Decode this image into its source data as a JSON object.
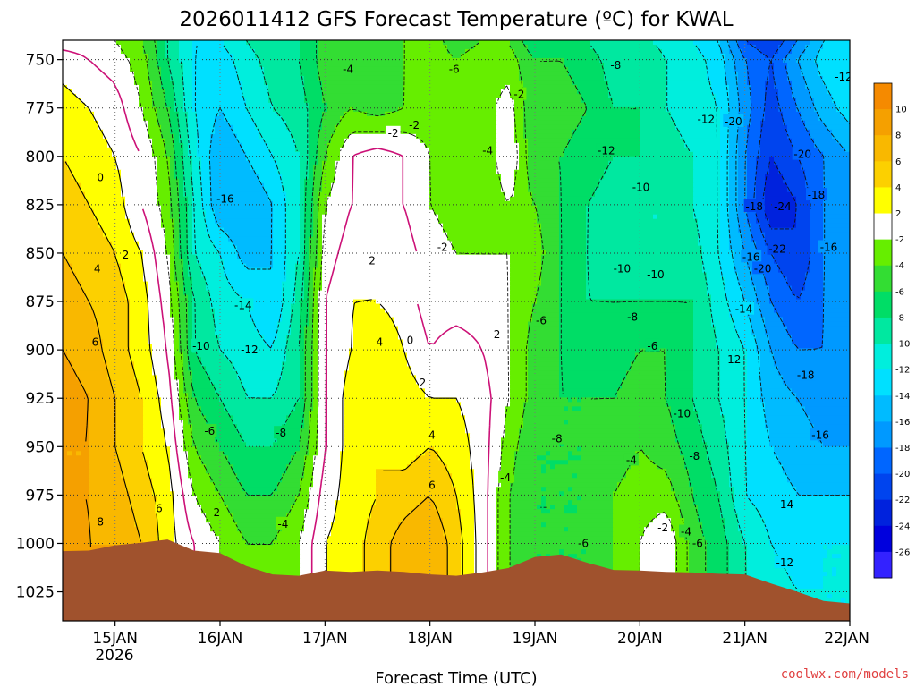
{
  "chart_data": {
    "type": "heatmap",
    "title": "2026011412 GFS Forecast Temperature (ºC) for KWAL",
    "xlabel": "Forecast Time (UTC)",
    "ylabel": "",
    "x_tick_labels": [
      "15JAN",
      "16JAN",
      "17JAN",
      "18JAN",
      "19JAN",
      "20JAN",
      "21JAN",
      "22JAN"
    ],
    "x_tick_sublabel": "2026",
    "x_range": [
      14.5,
      22.0
    ],
    "y_tick_labels": [
      "750",
      "775",
      "800",
      "825",
      "850",
      "875",
      "900",
      "925",
      "950",
      "975",
      "1000",
      "1025"
    ],
    "y_range": [
      740,
      1040
    ],
    "colorbar": {
      "labels": [
        "10",
        "8",
        "6",
        "4",
        "2",
        "-2",
        "-4",
        "-6",
        "-8",
        "-10",
        "-12",
        "-14",
        "-16",
        "-18",
        "-20",
        "-22",
        "-24",
        "-26"
      ],
      "bins": [
        {
          "lo": 10,
          "hi": 12,
          "color": "#f58a00"
        },
        {
          "lo": 8,
          "hi": 10,
          "color": "#f5a000"
        },
        {
          "lo": 6,
          "hi": 8,
          "color": "#f9b800"
        },
        {
          "lo": 4,
          "hi": 6,
          "color": "#fcd000"
        },
        {
          "lo": 2,
          "hi": 4,
          "color": "#ffff00"
        },
        {
          "lo": -2,
          "hi": 2,
          "color": "#ffffff"
        },
        {
          "lo": -4,
          "hi": -2,
          "color": "#66ee00"
        },
        {
          "lo": -6,
          "hi": -4,
          "color": "#33dd33"
        },
        {
          "lo": -8,
          "hi": -6,
          "color": "#00dd66"
        },
        {
          "lo": -10,
          "hi": -8,
          "color": "#00e8a0"
        },
        {
          "lo": -12,
          "hi": -10,
          "color": "#00eedd"
        },
        {
          "lo": -14,
          "hi": -12,
          "color": "#00e0ff"
        },
        {
          "lo": -16,
          "hi": -14,
          "color": "#00bbff"
        },
        {
          "lo": -18,
          "hi": -16,
          "color": "#0099ff"
        },
        {
          "lo": -20,
          "hi": -18,
          "color": "#0066ff"
        },
        {
          "lo": -22,
          "hi": -20,
          "color": "#0044ee"
        },
        {
          "lo": -24,
          "hi": -22,
          "color": "#0022dd"
        },
        {
          "lo": -26,
          "hi": -24,
          "color": "#0000dd"
        },
        {
          "lo": -28,
          "hi": -26,
          "color": "#3322ff"
        }
      ]
    },
    "temperature_grid": {
      "times": [
        14.5,
        14.75,
        15.0,
        15.25,
        15.5,
        15.75,
        16.0,
        16.25,
        16.5,
        16.75,
        17.0,
        17.25,
        17.5,
        17.75,
        18.0,
        18.25,
        18.5,
        18.75,
        19.0,
        19.25,
        19.5,
        19.75,
        20.0,
        20.25,
        20.5,
        20.75,
        21.0,
        21.25,
        21.5,
        21.75,
        22.0
      ],
      "levels": [
        740,
        750,
        775,
        800,
        825,
        850,
        875,
        900,
        925,
        950,
        975,
        1000,
        1025,
        1040
      ],
      "values": [
        [
          -1,
          -1,
          -2,
          -4,
          -8,
          -12,
          -12,
          -10,
          -8,
          -8,
          -5,
          -4,
          -6,
          -4,
          -3,
          -5,
          -4,
          -4,
          -8,
          -8,
          -8,
          -10,
          -9,
          -11,
          -12,
          -14,
          -20,
          -22,
          -18,
          -14,
          -12
        ],
        [
          1,
          0,
          -1,
          -3,
          -8,
          -12,
          -13,
          -11,
          -9,
          -8,
          -5,
          -4,
          -6,
          -4,
          -3,
          -4,
          -3,
          -3,
          -6,
          -6,
          -7,
          -9,
          -8,
          -10,
          -11,
          -13,
          -18,
          -20,
          -16,
          -13,
          -12
        ],
        [
          3,
          2,
          1,
          -2,
          -6,
          -12,
          -14,
          -12,
          -10,
          -9,
          -6,
          -4,
          -5,
          -4,
          -3,
          -4,
          -3,
          -1,
          -6,
          -5,
          -6,
          -8,
          -8,
          -10,
          -11,
          -12,
          -17,
          -21,
          -18,
          -15,
          -13
        ],
        [
          4,
          3,
          2,
          0,
          -4,
          -11,
          -16,
          -14,
          -12,
          -10,
          -4,
          0,
          1,
          0,
          -2,
          -4,
          -4,
          0,
          -6,
          -6,
          -7,
          -8,
          -8,
          -9,
          -10,
          -12,
          -18,
          -22,
          -20,
          -18,
          -16
        ],
        [
          5,
          4,
          3,
          0,
          -3,
          -10,
          -16,
          -16,
          -14,
          -10,
          -2,
          0,
          1,
          0,
          -2,
          -3,
          -4,
          -2,
          -4,
          -6,
          -8,
          -9,
          -10,
          -10,
          -10,
          -12,
          -18,
          -24,
          -22,
          -18,
          -16
        ],
        [
          6,
          5,
          4,
          2,
          -2,
          -10,
          -12,
          -15,
          -14,
          -10,
          -1,
          1,
          2,
          1,
          -1,
          -2,
          -2,
          -2,
          -3,
          -6,
          -8,
          -10,
          -10,
          -10,
          -9,
          -12,
          -16,
          -20,
          -22,
          -18,
          -16
        ],
        [
          7,
          6,
          5,
          3,
          -1,
          -8,
          -11,
          -12,
          -14,
          -9,
          0,
          2,
          2,
          1,
          -1,
          -1,
          -1,
          -2,
          -4,
          -6,
          -8,
          -8,
          -8,
          -8,
          -8,
          -11,
          -14,
          -18,
          -20,
          -18,
          -16
        ],
        [
          8,
          7,
          5,
          3,
          0,
          -8,
          -10,
          -11,
          -12,
          -8,
          0,
          2,
          4,
          2,
          0,
          1,
          0,
          -2,
          -5,
          -6,
          -7,
          -7,
          -6,
          -6,
          -8,
          -10,
          -12,
          -16,
          -18,
          -18,
          -17
        ],
        [
          9,
          8,
          6,
          4,
          1,
          -6,
          -8,
          -10,
          -10,
          -8,
          0,
          3,
          4,
          3,
          2,
          2,
          1,
          -2,
          -5,
          -6,
          -6,
          -6,
          -5,
          -6,
          -8,
          -10,
          -12,
          -15,
          -16,
          -17,
          -17
        ],
        [
          8,
          8,
          6,
          4,
          2,
          -4,
          -6,
          -8,
          -8,
          -6,
          0,
          3,
          4,
          3,
          4,
          3,
          1,
          -3,
          -6,
          -6,
          -6,
          -5,
          -4,
          -5,
          -7,
          -9,
          -12,
          -14,
          -15,
          -16,
          -16
        ],
        [
          8,
          8,
          7,
          5,
          3,
          -2,
          -4,
          -6,
          -6,
          -4,
          1,
          3,
          4,
          5,
          6,
          4,
          1,
          -4,
          -6,
          -6,
          -6,
          -4,
          -3,
          -3,
          -6,
          -8,
          -12,
          -13,
          -14,
          -14,
          -14
        ],
        [
          9,
          8,
          8,
          6,
          3,
          0,
          -2,
          -4,
          -4,
          -2,
          2,
          3,
          5,
          7,
          8,
          5,
          1,
          -4,
          -6,
          -6,
          -6,
          -4,
          -2,
          0,
          -5,
          -7,
          -10,
          -12,
          -13,
          -12,
          -12
        ],
        [
          9,
          8,
          8,
          6,
          3,
          0,
          -2,
          -3,
          -3,
          -2,
          2,
          3,
          5,
          7,
          8,
          5,
          1,
          -4,
          -6,
          -6,
          -6,
          -4,
          -2,
          0,
          -5,
          -7,
          -10,
          -11,
          -12,
          -12,
          -12
        ],
        [
          9,
          8,
          8,
          6,
          3,
          0,
          -2,
          -3,
          -3,
          -2,
          2,
          3,
          5,
          7,
          8,
          5,
          1,
          -4,
          -6,
          -6,
          -6,
          -4,
          -2,
          0,
          -5,
          -7,
          -10,
          -11,
          -12,
          -12,
          -12
        ]
      ]
    },
    "surface_pressure": {
      "times": [
        14.5,
        14.75,
        15.0,
        15.25,
        15.5,
        15.75,
        16.0,
        16.25,
        16.5,
        16.75,
        17.0,
        17.25,
        17.5,
        17.75,
        18.0,
        18.25,
        18.5,
        18.75,
        19.0,
        19.25,
        19.5,
        19.75,
        20.0,
        20.25,
        20.5,
        20.75,
        21.0,
        21.25,
        21.5,
        21.75,
        22.0
      ],
      "values": [
        1004,
        1003,
        1001,
        999,
        998,
        1003,
        1005,
        1011,
        1016,
        1016,
        1014,
        1014,
        1014,
        1014,
        1016,
        1016,
        1015,
        1012,
        1007,
        1005,
        1010,
        1013,
        1014,
        1014,
        1015,
        1015,
        1016,
        1020,
        1025,
        1029,
        1031
      ]
    },
    "contour_labels": [
      {
        "t": 14.86,
        "p": 811,
        "text": "0"
      },
      {
        "t": 15.1,
        "p": 851,
        "text": "2"
      },
      {
        "t": 14.83,
        "p": 858,
        "text": "4"
      },
      {
        "t": 14.81,
        "p": 896,
        "text": "6"
      },
      {
        "t": 14.86,
        "p": 989,
        "text": "8"
      },
      {
        "t": 15.42,
        "p": 982,
        "text": "6"
      },
      {
        "t": 16.05,
        "p": 822,
        "text": "-16"
      },
      {
        "t": 16.22,
        "p": 877,
        "text": "-14"
      },
      {
        "t": 15.82,
        "p": 898,
        "text": "-10"
      },
      {
        "t": 16.28,
        "p": 900,
        "text": "-12"
      },
      {
        "t": 15.9,
        "p": 942,
        "text": "-6"
      },
      {
        "t": 16.58,
        "p": 943,
        "text": "-8"
      },
      {
        "t": 15.95,
        "p": 984,
        "text": "-2"
      },
      {
        "t": 16.6,
        "p": 990,
        "text": "-4"
      },
      {
        "t": 17.22,
        "p": 755,
        "text": "-4"
      },
      {
        "t": 17.65,
        "p": 788,
        "text": "-2"
      },
      {
        "t": 17.85,
        "p": 784,
        "text": "-2"
      },
      {
        "t": 18.23,
        "p": 755,
        "text": "-6"
      },
      {
        "t": 18.55,
        "p": 797,
        "text": "-4"
      },
      {
        "t": 18.12,
        "p": 847,
        "text": "-2"
      },
      {
        "t": 17.45,
        "p": 854,
        "text": "2"
      },
      {
        "t": 17.52,
        "p": 896,
        "text": "4"
      },
      {
        "t": 17.81,
        "p": 895,
        "text": "0"
      },
      {
        "t": 17.93,
        "p": 917,
        "text": "2"
      },
      {
        "t": 18.02,
        "p": 944,
        "text": "4"
      },
      {
        "t": 18.02,
        "p": 970,
        "text": "6"
      },
      {
        "t": 18.85,
        "p": 768,
        "text": "-2"
      },
      {
        "t": 18.62,
        "p": 892,
        "text": "-2"
      },
      {
        "t": 19.06,
        "p": 885,
        "text": "-6"
      },
      {
        "t": 19.21,
        "p": 946,
        "text": "-8"
      },
      {
        "t": 18.72,
        "p": 966,
        "text": "-4"
      },
      {
        "t": 19.77,
        "p": 753,
        "text": "-8"
      },
      {
        "t": 20.01,
        "p": 816,
        "text": "-10"
      },
      {
        "t": 19.68,
        "p": 797,
        "text": "-12"
      },
      {
        "t": 19.83,
        "p": 858,
        "text": "-10"
      },
      {
        "t": 20.15,
        "p": 861,
        "text": "-10"
      },
      {
        "t": 19.93,
        "p": 883,
        "text": "-8"
      },
      {
        "t": 20.12,
        "p": 898,
        "text": "-6"
      },
      {
        "t": 20.4,
        "p": 933,
        "text": "-10"
      },
      {
        "t": 19.92,
        "p": 957,
        "text": "-4"
      },
      {
        "t": 20.52,
        "p": 955,
        "text": "-8"
      },
      {
        "t": 20.22,
        "p": 992,
        "text": "-2"
      },
      {
        "t": 20.44,
        "p": 994,
        "text": "-4"
      },
      {
        "t": 19.46,
        "p": 1000,
        "text": "-6"
      },
      {
        "t": 20.55,
        "p": 1000,
        "text": "-6"
      },
      {
        "t": 20.63,
        "p": 781,
        "text": "-12"
      },
      {
        "t": 20.89,
        "p": 782,
        "text": "-20"
      },
      {
        "t": 21.09,
        "p": 826,
        "text": "-18"
      },
      {
        "t": 21.36,
        "p": 826,
        "text": "-24"
      },
      {
        "t": 21.55,
        "p": 799,
        "text": "-20"
      },
      {
        "t": 21.68,
        "p": 820,
        "text": "-18"
      },
      {
        "t": 21.31,
        "p": 848,
        "text": "-22"
      },
      {
        "t": 21.8,
        "p": 847,
        "text": "-16"
      },
      {
        "t": 21.06,
        "p": 852,
        "text": "-16"
      },
      {
        "t": 21.17,
        "p": 858,
        "text": "-20"
      },
      {
        "t": 20.99,
        "p": 879,
        "text": "-14"
      },
      {
        "t": 20.88,
        "p": 905,
        "text": "-12"
      },
      {
        "t": 21.58,
        "p": 913,
        "text": "-18"
      },
      {
        "t": 21.72,
        "p": 944,
        "text": "-16"
      },
      {
        "t": 21.38,
        "p": 980,
        "text": "-14"
      },
      {
        "t": 21.38,
        "p": 1010,
        "text": "-12"
      },
      {
        "t": 21.94,
        "p": 759,
        "text": "-12"
      }
    ]
  },
  "credit": "coolwx.com/models",
  "colors": {
    "ground": "#a0522d",
    "zero_contour": "#cc1177",
    "credit_text": "#e04040"
  }
}
